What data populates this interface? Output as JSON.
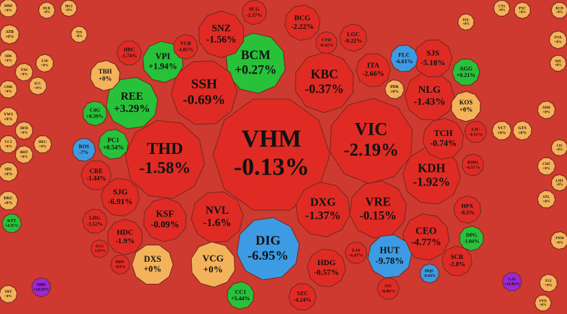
{
  "chart_data": {
    "type": "treemap",
    "categories": [
      "VHM",
      "VIC",
      "THD",
      "DIG",
      "BCM",
      "SSH",
      "KBC",
      "KDH",
      "VRE",
      "DXG",
      "NVL",
      "SNZ",
      "NLG",
      "TCH",
      "CEO",
      "HUT",
      "VCG",
      "DXS",
      "KSF",
      "SJG",
      "REE",
      "VPI",
      "SJS",
      "KOS",
      "HDG",
      "BCG",
      "LGC",
      "ITA",
      "HDC",
      "CRE",
      "TBH",
      "SCR",
      "FLC",
      "HPX",
      "SZC",
      "CC1",
      "ROS",
      "PC1",
      "C4G",
      "AGG",
      "DPG",
      "LDG",
      "SCG",
      "VCR",
      "HBC",
      "CTD",
      "LIC",
      "KHG",
      "L14",
      "IJC",
      "HQC",
      "VC7",
      "GTS",
      "PDR",
      "HHV",
      "EVG",
      "DBH",
      "ATB",
      "SD6",
      "TA6",
      "CDR",
      "VW3",
      "HFB",
      "VC5",
      "BHT",
      "SD1",
      "DKC",
      "ICC",
      "HEC",
      "L10",
      "TIX",
      "DLR",
      "MCI",
      "RCD",
      "PVA",
      "SD5",
      "SDH",
      "CI5",
      "CH5",
      "LM3",
      "STL",
      "TNM",
      "E12",
      "PTO",
      "PXC",
      "CTS",
      "TEL",
      "KTT",
      "TBT",
      "HBD",
      "LAI"
    ],
    "values": [
      -0.13,
      -2.19,
      -1.58,
      -6.95,
      0.27,
      -0.69,
      -0.37,
      -1.92,
      -0.15,
      -1.37,
      -1.6,
      -1.56,
      -1.43,
      -0.74,
      -4.77,
      -9.78,
      0,
      0,
      -0.09,
      -6.91,
      3.29,
      1.94,
      -5.18,
      0,
      -0.57,
      -2.22,
      -0.22,
      -2.66,
      -1.9,
      -1.44,
      0,
      -2.8,
      -6.61,
      -0.5,
      -4.24,
      5.44,
      -7,
      0.54,
      0.39,
      0.21,
      -1.04,
      -3.52,
      -2.57,
      -1.05,
      -1.74,
      -0.42,
      -4.11,
      -4.57,
      -6.47,
      -0.86,
      -0.64,
      0,
      0,
      0,
      -0.6,
      -1.97,
      0,
      0,
      0,
      0,
      0,
      0,
      0,
      0,
      0,
      0,
      0,
      0,
      0,
      0,
      0,
      0,
      0,
      0,
      0,
      0,
      0,
      0,
      0,
      0,
      0,
      0,
      0,
      0,
      0,
      0,
      0,
      4.35,
      0,
      14.93,
      14.04
    ],
    "value_labels": [
      "-0.13%",
      "-2.19%",
      "-1.58%",
      "-6.95%",
      "+0.27%",
      "-0.69%",
      "-0.37%",
      "-1.92%",
      "-0.15%",
      "-1.37%",
      "-1.6%",
      "-1.56%",
      "-1.43%",
      "-0.74%",
      "-4.77%",
      "-9.78%",
      "+0%",
      "+0%",
      "-0.09%",
      "-6.91%",
      "+3.29%",
      "+1.94%",
      "-5.18%",
      "+0%",
      "-0.57%",
      "-2.22%",
      "-0.22%",
      "-2.66%",
      "-1.9%",
      "-1.44%",
      "+0%",
      "-2.8%",
      "-6.61%",
      "-0.5%",
      "-4.24%",
      "+5.44%",
      "-7%",
      "+0.54%",
      "+0.39%",
      "+0.21%",
      "-1.04%",
      "-3.52%",
      "-2.57%",
      "-1.05%",
      "-1.74%",
      "-0.42%",
      "-4.11%",
      "-4.57%",
      "-6.47%",
      "-0.86%",
      "-0.64%",
      "+0%",
      "+0%",
      "+0%",
      "-0.6%",
      "-1.97%",
      "+0%",
      "+0%",
      "+0%",
      "+0%",
      "+0%",
      "+0%",
      "+0%",
      "+0%",
      "+0%",
      "+0%",
      "+0%",
      "+0%",
      "+0%",
      "+0%",
      "+0%",
      "+0%",
      "+0%",
      "+0%",
      "+0%",
      "+0%",
      "+0%",
      "+0%",
      "+0%",
      "+0%",
      "+0%",
      "+0%",
      "+0%",
      "+0%",
      "+0%",
      "+0%",
      "+0%",
      "+4.35%",
      "+0%",
      "+14.93%",
      "+14.04%"
    ],
    "colors": [
      "#e02b24",
      "#e02b24",
      "#e02b24",
      "#3d9be3",
      "#27c23a",
      "#e02b24",
      "#e02b24",
      "#e02b24",
      "#e02b24",
      "#e02b24",
      "#e02b24",
      "#e02b24",
      "#e02b24",
      "#e02b24",
      "#e02b24",
      "#3d9be3",
      "#f4b35a",
      "#f4b35a",
      "#e02b24",
      "#e02b24",
      "#27c23a",
      "#27c23a",
      "#e02b24",
      "#f4b35a",
      "#e02b24",
      "#e02b24",
      "#e02b24",
      "#e02b24",
      "#e02b24",
      "#e02b24",
      "#f4b35a",
      "#e02b24",
      "#3d9be3",
      "#e02b24",
      "#e02b24",
      "#27c23a",
      "#3d9be3",
      "#27c23a",
      "#27c23a",
      "#27c23a",
      "#27c23a",
      "#e02b24",
      "#e02b24",
      "#e02b24",
      "#e02b24",
      "#e02b24",
      "#e02b24",
      "#e02b24",
      "#e02b24",
      "#e02b24",
      "#3d9be3",
      "#f4b35a",
      "#f4b35a",
      "#f4b35a",
      "#e02b24",
      "#e02b24",
      "#f4b35a",
      "#f4b35a",
      "#f4b35a",
      "#f4b35a",
      "#f4b35a",
      "#f4b35a",
      "#f4b35a",
      "#f4b35a",
      "#f4b35a",
      "#f4b35a",
      "#f4b35a",
      "#f4b35a",
      "#f4b35a",
      "#f4b35a",
      "#f4b35a",
      "#f4b35a",
      "#f4b35a",
      "#f4b35a",
      "#f4b35a",
      "#f4b35a",
      "#f4b35a",
      "#f4b35a",
      "#f4b35a",
      "#f4b35a",
      "#f4b35a",
      "#f4b35a",
      "#f4b35a",
      "#f4b35a",
      "#f4b35a",
      "#f4b35a",
      "#f4b35a",
      "#27c23a",
      "#f4b35a",
      "#9c27d6",
      "#9c27d6"
    ]
  }
}
